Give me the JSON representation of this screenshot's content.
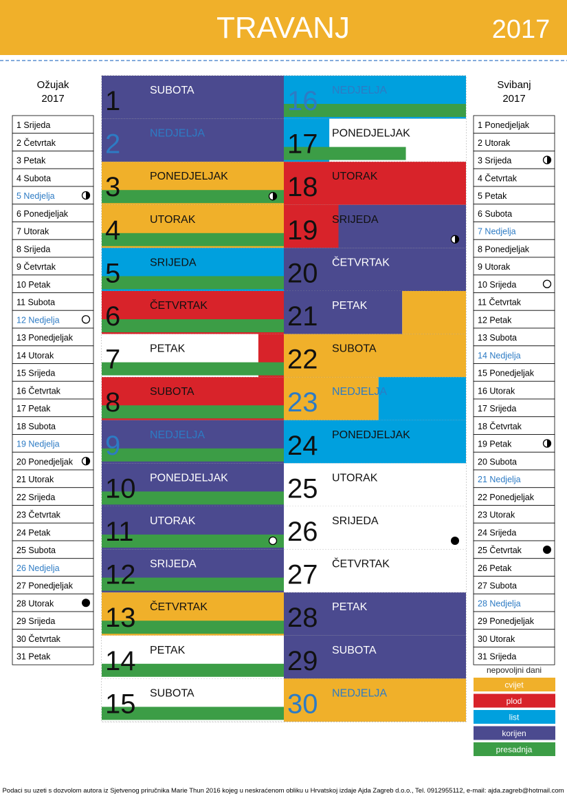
{
  "header": {
    "title": "TRAVANJ",
    "year": "2017"
  },
  "prev_month": {
    "name": "Ožujak",
    "year": "2017",
    "days": [
      "1 Srijeda",
      "2 Četvrtak",
      "3 Petak",
      "4 Subota",
      "5 Nedjelja",
      "6 Ponedjeljak",
      "7 Utorak",
      "8 Srijeda",
      "9 Četvrtak",
      "10 Petak",
      "11 Subota",
      "12 Nedjelja",
      "13 Ponedjeljak",
      "14 Utorak",
      "15 Srijeda",
      "16 Četvrtak",
      "17 Petak",
      "18 Subota",
      "19 Nedjelja",
      "20 Ponedjeljak",
      "21 Utorak",
      "22 Srijeda",
      "23 Četvrtak",
      "24 Petak",
      "25 Subota",
      "26 Nedjelja",
      "27 Ponedjeljak",
      "28 Utorak",
      "29 Srijeda",
      "30 Četvrtak",
      "31 Petak"
    ]
  },
  "next_month": {
    "name": "Svibanj",
    "year": "2017",
    "days": [
      "1 Ponedjeljak",
      "2 Utorak",
      "3 Srijeda",
      "4 Četvrtak",
      "5 Petak",
      "6 Subota",
      "7 Nedjelja",
      "8 Ponedjeljak",
      "9 Utorak",
      "10 Srijeda",
      "11 Četvrtak",
      "12 Petak",
      "13 Subota",
      "14 Nedjelja",
      "15 Ponedjeljak",
      "16 Utorak",
      "17 Srijeda",
      "18 Četvrtak",
      "19 Petak",
      "20 Subota",
      "21 Nedjelja",
      "22 Ponedjeljak",
      "23 Utorak",
      "24 Srijeda",
      "25 Četvrtak",
      "26 Petak",
      "27 Subota",
      "28 Nedjelja",
      "29 Ponedjeljak",
      "30 Utorak",
      "31 Srijeda"
    ]
  },
  "days": [
    {
      "number": 1,
      "name": "SUBOTA"
    },
    {
      "number": 2,
      "name": "NEDJELJA"
    },
    {
      "number": 3,
      "name": "PONEDJELJAK"
    },
    {
      "number": 4,
      "name": "UTORAK"
    },
    {
      "number": 5,
      "name": "SRIJEDA"
    },
    {
      "number": 6,
      "name": "ČETVRTAK"
    },
    {
      "number": 7,
      "name": "PETAK"
    },
    {
      "number": 8,
      "name": "SUBOTA"
    },
    {
      "number": 9,
      "name": "NEDJELJA"
    },
    {
      "number": 10,
      "name": "PONEDJELJAK"
    },
    {
      "number": 11,
      "name": "UTORAK"
    },
    {
      "number": 12,
      "name": "SRIJEDA"
    },
    {
      "number": 13,
      "name": "ČETVRTAK"
    },
    {
      "number": 14,
      "name": "PETAK"
    },
    {
      "number": 15,
      "name": "SUBOTA"
    },
    {
      "number": 16,
      "name": "NEDJELJA"
    },
    {
      "number": 17,
      "name": "PONEDJELJAK"
    },
    {
      "number": 18,
      "name": "UTORAK"
    },
    {
      "number": 19,
      "name": "SRIJEDA"
    },
    {
      "number": 20,
      "name": "ČETVRTAK"
    },
    {
      "number": 21,
      "name": "PETAK"
    },
    {
      "number": 22,
      "name": "SUBOTA"
    },
    {
      "number": 23,
      "name": "NEDJELJA"
    },
    {
      "number": 24,
      "name": "PONEDJELJAK"
    },
    {
      "number": 25,
      "name": "UTORAK"
    },
    {
      "number": 26,
      "name": "SRIJEDA"
    },
    {
      "number": 27,
      "name": "ČETVRTAK"
    },
    {
      "number": 28,
      "name": "PETAK"
    },
    {
      "number": 29,
      "name": "SUBOTA"
    },
    {
      "number": 30,
      "name": "NEDJELJA"
    }
  ],
  "legend": {
    "title": "nepovoljni dani",
    "items": [
      {
        "label": "cvijet",
        "color": "#f0b02a"
      },
      {
        "label": "plod",
        "color": "#d8232a"
      },
      {
        "label": "list",
        "color": "#00a0de"
      },
      {
        "label": "korijen",
        "color": "#4b4a8f"
      },
      {
        "label": "presadnja",
        "color": "#3c9d46"
      }
    ]
  },
  "footer": "Podaci su uzeti s dozvolom autora iz Sjetvenog priručnika Marie Thun 2016 kojeg u  neskraćenom obliku u Hrvatskoj izdaje Ajda Zagreb d.o.o., Tel. 0912955112, e-mail: ajda.zagreb@hotmail.com"
}
